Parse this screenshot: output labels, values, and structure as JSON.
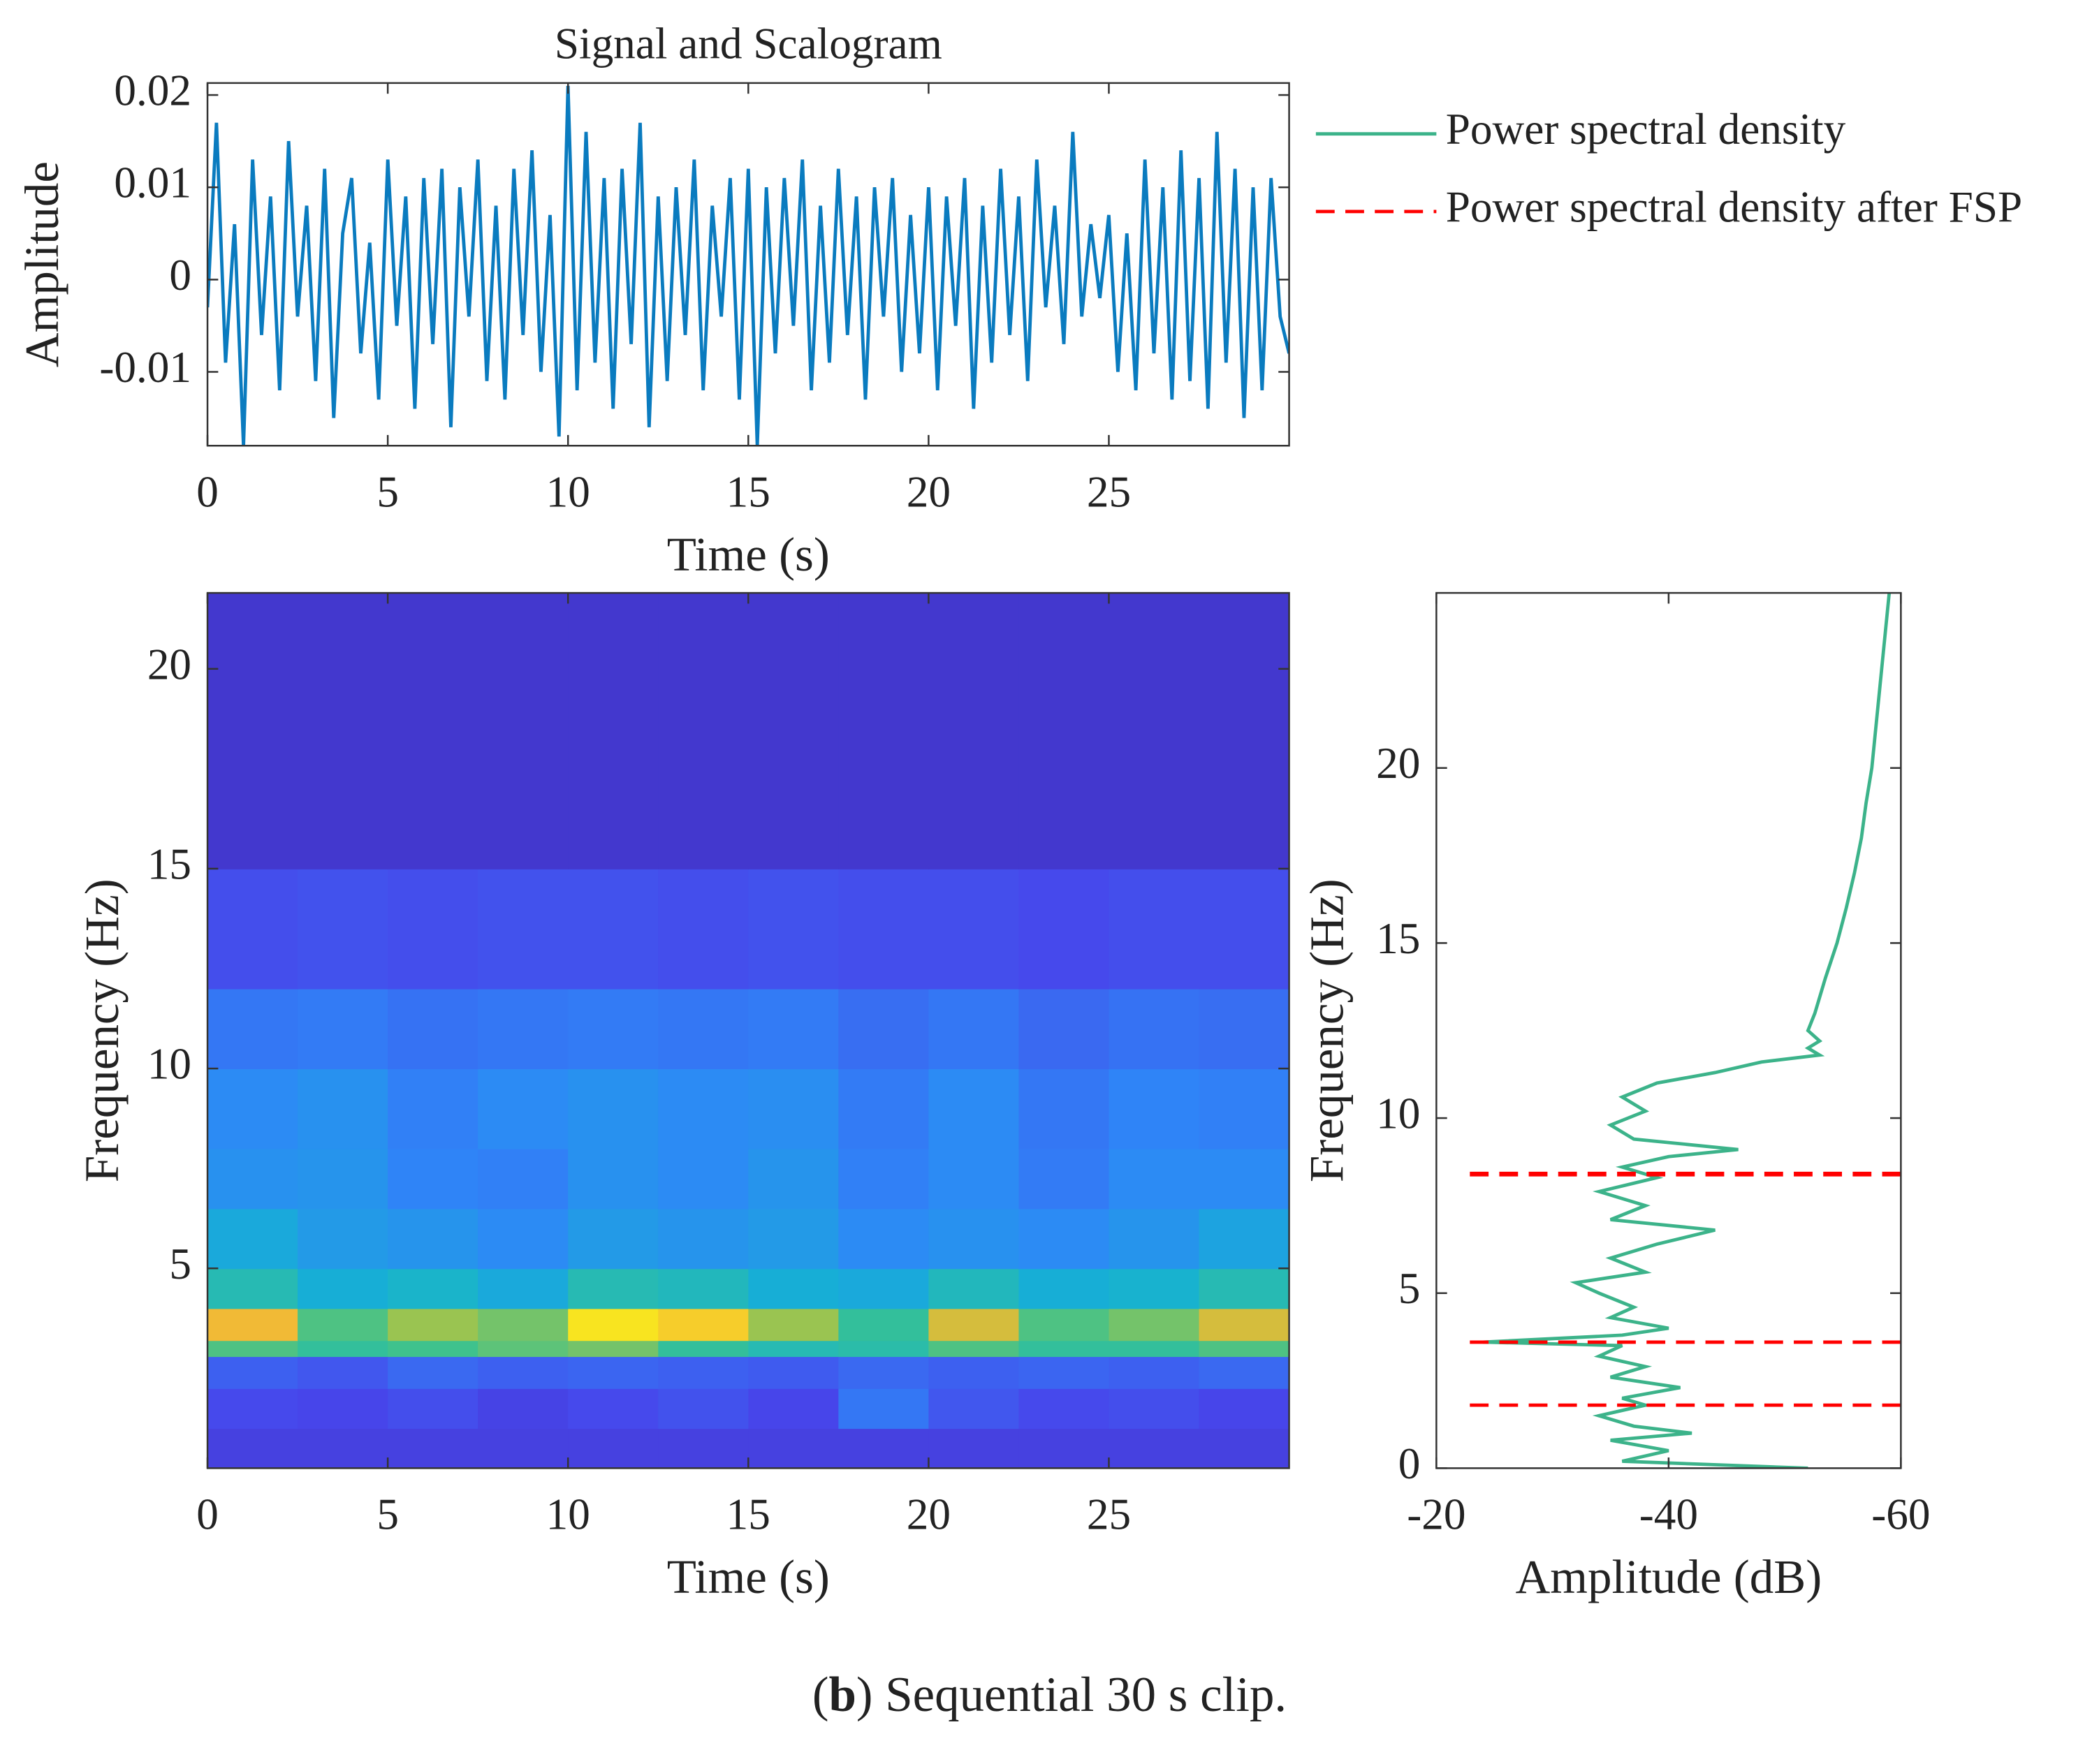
{
  "chart_data": [
    {
      "type": "line",
      "title": "Signal and Scalogram",
      "xlabel": "Time (s)",
      "ylabel": "Amplitude",
      "color": "#0a7bbf",
      "x": [
        0,
        0.25,
        0.5,
        0.75,
        1,
        1.25,
        1.5,
        1.75,
        2,
        2.25,
        2.5,
        2.75,
        3,
        3.25,
        3.5,
        3.75,
        4,
        4.25,
        4.5,
        4.75,
        5,
        5.25,
        5.5,
        5.75,
        6,
        6.25,
        6.5,
        6.75,
        7,
        7.25,
        7.5,
        7.75,
        8,
        8.25,
        8.5,
        8.75,
        9,
        9.25,
        9.5,
        9.75,
        10,
        10.25,
        10.5,
        10.75,
        11,
        11.25,
        11.5,
        11.75,
        12,
        12.25,
        12.5,
        12.75,
        13,
        13.25,
        13.5,
        13.75,
        14,
        14.25,
        14.5,
        14.75,
        15,
        15.25,
        15.5,
        15.75,
        16,
        16.25,
        16.5,
        16.75,
        17,
        17.25,
        17.5,
        17.75,
        18,
        18.25,
        18.5,
        18.75,
        19,
        19.25,
        19.5,
        19.75,
        20,
        20.25,
        20.5,
        20.75,
        21,
        21.25,
        21.5,
        21.75,
        22,
        22.25,
        22.5,
        22.75,
        23,
        23.25,
        23.5,
        23.75,
        24,
        24.25,
        24.5,
        24.75,
        25,
        25.25,
        25.5,
        25.75,
        26,
        26.25,
        26.5,
        26.75,
        27,
        27.25,
        27.5,
        27.75,
        28,
        28.25,
        28.5,
        28.75,
        29,
        29.25,
        29.5,
        29.75,
        30
      ],
      "values": [
        -0.003,
        0.017,
        -0.009,
        0.006,
        -0.018,
        0.013,
        -0.006,
        0.009,
        -0.012,
        0.015,
        -0.004,
        0.008,
        -0.011,
        0.012,
        -0.015,
        0.005,
        0.011,
        -0.008,
        0.004,
        -0.013,
        0.013,
        -0.005,
        0.009,
        -0.014,
        0.011,
        -0.007,
        0.012,
        -0.016,
        0.01,
        -0.004,
        0.013,
        -0.011,
        0.008,
        -0.013,
        0.012,
        -0.006,
        0.014,
        -0.01,
        0.007,
        -0.017,
        0.021,
        -0.012,
        0.016,
        -0.009,
        0.011,
        -0.014,
        0.012,
        -0.007,
        0.017,
        -0.016,
        0.009,
        -0.011,
        0.01,
        -0.006,
        0.013,
        -0.012,
        0.008,
        -0.004,
        0.011,
        -0.013,
        0.012,
        -0.018,
        0.01,
        -0.008,
        0.011,
        -0.005,
        0.013,
        -0.012,
        0.008,
        -0.009,
        0.012,
        -0.006,
        0.009,
        -0.013,
        0.01,
        -0.004,
        0.011,
        -0.01,
        0.007,
        -0.008,
        0.01,
        -0.012,
        0.009,
        -0.005,
        0.011,
        -0.014,
        0.008,
        -0.009,
        0.012,
        -0.006,
        0.009,
        -0.011,
        0.013,
        -0.003,
        0.008,
        -0.007,
        0.016,
        -0.004,
        0.006,
        -0.002,
        0.007,
        -0.01,
        0.005,
        -0.012,
        0.013,
        -0.008,
        0.01,
        -0.013,
        0.014,
        -0.011,
        0.011,
        -0.014,
        0.016,
        -0.009,
        0.012,
        -0.015,
        0.01,
        -0.012,
        0.011,
        -0.004,
        -0.008
      ],
      "xlim": [
        0,
        30
      ],
      "xticks": [
        0,
        5,
        10,
        15,
        20,
        25
      ],
      "ylim": [
        -0.018,
        0.0213
      ],
      "yticks": [
        -0.01,
        0,
        0.01,
        0.02
      ]
    },
    {
      "type": "heatmap",
      "xlabel": "Time (s)",
      "ylabel": "Frequency (Hz)",
      "colormap": [
        "#3e26a8",
        "#4746eb",
        "#2e87f7",
        "#15b1d4",
        "#38c291",
        "#a5c44a",
        "#f5b935",
        "#f9fb15"
      ],
      "xbins": [
        0,
        2.5,
        5,
        7.5,
        10,
        12.5,
        15,
        17.5,
        20,
        22.5,
        25,
        27.5,
        30
      ],
      "ybins": [
        0,
        1,
        2,
        2.8,
        3.2,
        4,
        5,
        6.5,
        8,
        10,
        12,
        15,
        21.9
      ],
      "z": [
        [
          0.12,
          0.12,
          0.12,
          0.12,
          0.12,
          0.12,
          0.12,
          0.12,
          0.12,
          0.12,
          0.12,
          0.12
        ],
        [
          0.15,
          0.14,
          0.16,
          0.13,
          0.15,
          0.17,
          0.14,
          0.25,
          0.18,
          0.15,
          0.16,
          0.14
        ],
        [
          0.2,
          0.18,
          0.22,
          0.2,
          0.21,
          0.2,
          0.19,
          0.22,
          0.2,
          0.21,
          0.2,
          0.22
        ],
        [
          0.6,
          0.55,
          0.58,
          0.62,
          0.65,
          0.55,
          0.5,
          0.52,
          0.6,
          0.55,
          0.55,
          0.6
        ],
        [
          0.85,
          0.6,
          0.7,
          0.65,
          0.95,
          0.9,
          0.7,
          0.55,
          0.8,
          0.6,
          0.65,
          0.8
        ],
        [
          0.5,
          0.42,
          0.45,
          0.4,
          0.5,
          0.48,
          0.42,
          0.4,
          0.48,
          0.42,
          0.44,
          0.5
        ],
        [
          0.4,
          0.35,
          0.33,
          0.3,
          0.35,
          0.33,
          0.35,
          0.3,
          0.32,
          0.3,
          0.33,
          0.38
        ],
        [
          0.32,
          0.33,
          0.28,
          0.27,
          0.32,
          0.3,
          0.33,
          0.27,
          0.3,
          0.26,
          0.3,
          0.3
        ],
        [
          0.3,
          0.32,
          0.27,
          0.3,
          0.32,
          0.3,
          0.31,
          0.26,
          0.3,
          0.25,
          0.28,
          0.27
        ],
        [
          0.25,
          0.26,
          0.24,
          0.25,
          0.26,
          0.25,
          0.26,
          0.23,
          0.25,
          0.22,
          0.24,
          0.23
        ],
        [
          0.16,
          0.17,
          0.16,
          0.17,
          0.17,
          0.16,
          0.17,
          0.16,
          0.16,
          0.15,
          0.16,
          0.16
        ],
        [
          0.08,
          0.08,
          0.08,
          0.08,
          0.08,
          0.08,
          0.08,
          0.08,
          0.08,
          0.08,
          0.08,
          0.08
        ]
      ],
      "xlim": [
        0,
        30
      ],
      "xticks": [
        0,
        5,
        10,
        15,
        20,
        25
      ],
      "ylim": [
        0,
        21.9
      ],
      "yticks": [
        5,
        10,
        15,
        20
      ]
    },
    {
      "type": "line",
      "orientation": "horizontal",
      "xlabel": "Amplitude (dB)",
      "ylabel": "Frequency (Hz)",
      "series": [
        {
          "name": "Power spectral density",
          "color": "#3cb38a",
          "frequencies": [
            0,
            0.2,
            0.5,
            0.8,
            1.0,
            1.2,
            1.5,
            1.8,
            2.0,
            2.3,
            2.6,
            2.9,
            3.2,
            3.5,
            3.6,
            3.8,
            4.0,
            4.3,
            4.6,
            5.0,
            5.3,
            5.6,
            6.0,
            6.4,
            6.8,
            7.1,
            7.5,
            7.9,
            8.3,
            8.6,
            8.9,
            9.1,
            9.4,
            9.8,
            10.2,
            10.6,
            11.0,
            11.3,
            11.6,
            11.8,
            12.0,
            12.2,
            12.5,
            13,
            14,
            15,
            16,
            17,
            18,
            19,
            20,
            21,
            22,
            23,
            24,
            25
          ],
          "values": [
            -52,
            -36,
            -40,
            -35,
            -42,
            -37,
            -34,
            -38,
            -36,
            -41,
            -35,
            -38,
            -34,
            -36,
            -24,
            -36,
            -40,
            -35,
            -37,
            -34,
            -32,
            -38,
            -35,
            -39,
            -44,
            -35,
            -38,
            -34,
            -39,
            -36,
            -40,
            -46,
            -37,
            -35,
            -38,
            -36,
            -39,
            -44,
            -48,
            -53,
            -52,
            -53,
            -52,
            -52.6,
            -53.5,
            -54.5,
            -55.3,
            -56,
            -56.6,
            -57,
            -57.5,
            -57.8,
            -58.1,
            -58.4,
            -58.7,
            -59
          ]
        },
        {
          "name": "Power spectral density after FSP",
          "color": "#ff0000",
          "dashed": true,
          "frequencies": [
            8.4,
            3.6,
            1.8
          ]
        }
      ],
      "xlim": [
        -20,
        -60
      ],
      "xticks": [
        -20,
        -40,
        -60
      ],
      "ylim": [
        0,
        25
      ],
      "yticks": [
        0,
        5,
        10,
        15,
        20
      ]
    }
  ],
  "caption": [
    "(",
    "b",
    ") Sequential 30 s clip."
  ]
}
